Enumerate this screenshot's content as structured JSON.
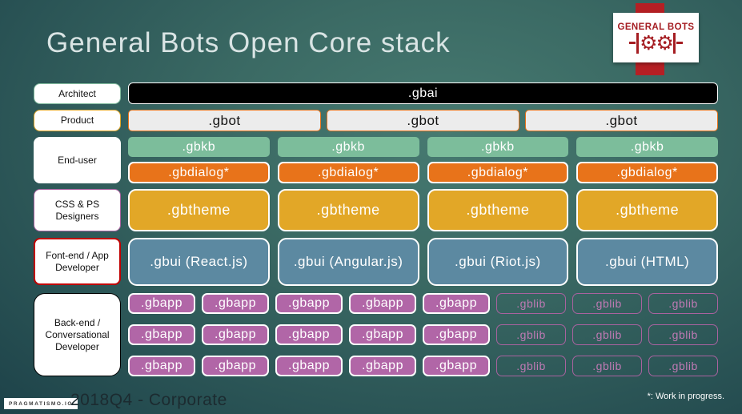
{
  "title": "General Bots Open Core stack",
  "logo": {
    "text": "GENERAL BOTS",
    "gears": "⚙⚙"
  },
  "labels": {
    "architect": "Architect",
    "product": "Product",
    "end_user": "End-user",
    "css_ps": "CSS & PS Designers",
    "frontend": "Font-end / App Developer",
    "backend": "Back-end / Conversational Developer"
  },
  "stack": {
    "gbai": ".gbai",
    "gbot": [
      ".gbot",
      ".gbot",
      ".gbot"
    ],
    "gbkb": [
      ".gbkb",
      ".gbkb",
      ".gbkb",
      ".gbkb"
    ],
    "gbdialog": [
      ".gbdialog*",
      ".gbdialog*",
      ".gbdialog*",
      ".gbdialog*"
    ],
    "gbtheme": [
      ".gbtheme",
      ".gbtheme",
      ".gbtheme",
      ".gbtheme"
    ],
    "gbui": [
      ".gbui (React.js)",
      ".gbui (Angular.js)",
      ".gbui (Riot.js)",
      ".gbui (HTML)"
    ],
    "gbapp": [
      ".gbapp",
      ".gbapp",
      ".gbapp",
      ".gbapp",
      ".gbapp",
      ".gbapp",
      ".gbapp",
      ".gbapp",
      ".gbapp",
      ".gbapp",
      ".gbapp",
      ".gbapp",
      ".gbapp",
      ".gbapp",
      ".gbapp"
    ],
    "gblib": [
      ".gblib",
      ".gblib",
      ".gblib",
      ".gblib",
      ".gblib",
      ".gblib",
      ".gblib",
      ".gblib",
      ".gblib"
    ]
  },
  "footer": {
    "badge": "PRAGMATISMO.IO",
    "left_text": "2018Q4 - Corporate",
    "note": "*: Work in progress."
  },
  "colors": {
    "background_center": "#477a71",
    "background_edge": "#122b34",
    "title_text": "#d9e4e4",
    "gbai_fill": "#000000",
    "gbot_fill": "#ececec",
    "gbot_border": "#e8731a",
    "gbkb_fill": "#7cbd9b",
    "gbdialog_fill": "#e8731a",
    "gbtheme_fill": "#e2a727",
    "gbui_fill": "#5c89a1",
    "gbapp_fill": "#b166a7",
    "gblib_border": "#a9629f",
    "logo_red": "#b51f24",
    "logo_text_red": "#a51d22",
    "label_border_architect": "#82bb9e",
    "label_border_product": "#e0a526",
    "label_border_css": "#a9629f",
    "label_border_frontend": "#c00000",
    "label_border_backend": "#000000"
  }
}
